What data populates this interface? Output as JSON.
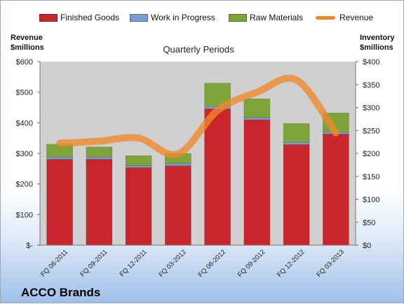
{
  "legend": {
    "finished_goods": "Finished Goods",
    "work_in_progress": "Work in Progress",
    "raw_materials": "Raw Materials",
    "revenue": "Revenue"
  },
  "axes": {
    "left_title_line1": "Revenue",
    "left_title_line2": "$millions",
    "right_title_line1": "Inventory",
    "right_title_line2": "$millions"
  },
  "subtitle": "Quarterly Periods",
  "company": "ACCO Brands",
  "colors": {
    "finished_goods": "#c8262c",
    "work_in_progress": "#7b9bd1",
    "raw_materials": "#7ea33a",
    "revenue": "#f0892a",
    "plot_background": "#d0d0d0"
  },
  "chart_data": {
    "type": "bar",
    "stacked": true,
    "categories": [
      "FQ 06-2011",
      "FQ 09-2011",
      "FQ 12-2011",
      "FQ 03-2012",
      "FQ 06-2012",
      "FQ 09-2012",
      "FQ 12-2012",
      "FQ 03-2013"
    ],
    "series": [
      {
        "name": "Finished Goods",
        "axis": "right",
        "values": [
          187,
          187,
          169,
          173,
          297,
          273,
          219,
          242
        ]
      },
      {
        "name": "Work in Progress",
        "axis": "right",
        "values": [
          5,
          5,
          4,
          5,
          5,
          5,
          5,
          5
        ]
      },
      {
        "name": "Raw Materials",
        "axis": "right",
        "values": [
          28,
          22,
          22,
          22,
          51,
          41,
          41,
          41
        ]
      },
      {
        "name": "Revenue",
        "axis": "left",
        "type": "line",
        "values": [
          333,
          340,
          350,
          298,
          440,
          500,
          540,
          367
        ]
      }
    ],
    "left_axis": {
      "title": "Revenue $millions",
      "ylim": [
        0,
        600
      ],
      "ticks": [
        "$-",
        "$100",
        "$200",
        "$300",
        "$400",
        "$500",
        "$600"
      ]
    },
    "right_axis": {
      "title": "Inventory $millions",
      "ylim": [
        0,
        400
      ],
      "ticks": [
        "$0",
        "$50",
        "$100",
        "$150",
        "$200",
        "$250",
        "$300",
        "$350",
        "$400"
      ]
    },
    "grid": false,
    "legend_position": "top"
  }
}
